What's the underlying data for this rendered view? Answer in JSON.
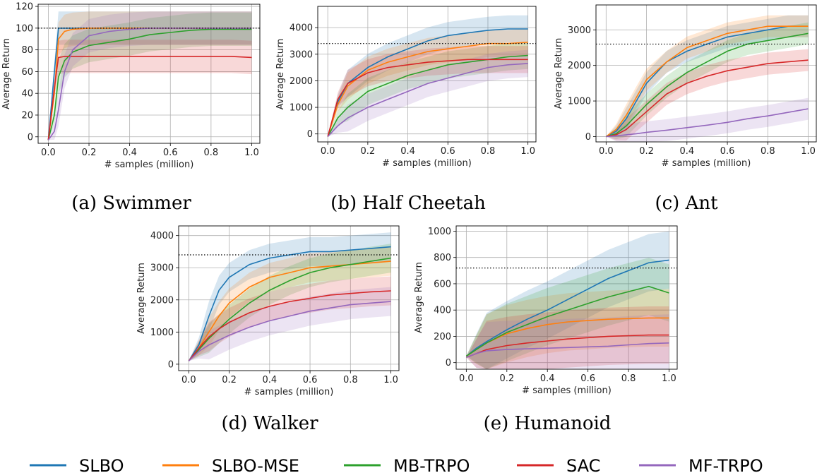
{
  "legend": [
    {
      "name": "SLBO",
      "color": "#1f77b4"
    },
    {
      "name": "SLBO-MSE",
      "color": "#ff7f0e"
    },
    {
      "name": "MB-TRPO",
      "color": "#2ca02c"
    },
    {
      "name": "SAC",
      "color": "#d62728"
    },
    {
      "name": "MF-TRPO",
      "color": "#9467bd"
    }
  ],
  "chart_data": [
    {
      "type": "line",
      "caption": "(a) Swimmer",
      "xlabel": "# samples (million)",
      "ylabel": "Average Return",
      "xlim": [
        -0.05,
        1.04
      ],
      "ylim": [
        -6,
        122
      ],
      "xticks": [
        "0.0",
        "0.2",
        "0.4",
        "0.6",
        "0.8",
        "1.0"
      ],
      "yticks": [
        "0",
        "20",
        "40",
        "60",
        "80",
        "100",
        "120"
      ],
      "reference_line": 100,
      "grid": true,
      "x": [
        0.0,
        0.03,
        0.05,
        0.08,
        0.12,
        0.2,
        0.3,
        0.4,
        0.5,
        0.6,
        0.7,
        0.8,
        0.9,
        1.0
      ],
      "series": [
        {
          "name": "SLBO",
          "values": [
            -3,
            60,
            100,
            100,
            100,
            100,
            100,
            100,
            100,
            100,
            100,
            100,
            100,
            100
          ]
        },
        {
          "name": "SLBO-MSE",
          "values": [
            -3,
            40,
            90,
            97,
            99,
            100,
            100,
            100,
            100,
            100,
            100,
            100,
            100,
            100
          ]
        },
        {
          "name": "MB-TRPO",
          "values": [
            -3,
            20,
            55,
            70,
            78,
            84,
            87,
            90,
            94,
            96,
            98,
            99,
            99,
            99
          ]
        },
        {
          "name": "SAC",
          "values": [
            -3,
            45,
            73,
            74,
            74,
            74,
            74,
            74,
            74,
            74,
            74,
            74,
            74,
            73
          ]
        },
        {
          "name": "MF-TRPO",
          "values": [
            -3,
            5,
            25,
            60,
            80,
            93,
            97,
            99,
            100,
            100,
            100,
            100,
            100,
            100
          ]
        }
      ]
    },
    {
      "type": "line",
      "caption": "(b) Half Cheetah",
      "xlabel": "# samples (million)",
      "ylabel": "Average Return",
      "xlim": [
        -0.05,
        1.04
      ],
      "ylim": [
        -300,
        4800
      ],
      "xticks": [
        "0.0",
        "0.2",
        "0.4",
        "0.6",
        "0.8",
        "1.0"
      ],
      "yticks": [
        "0",
        "1000",
        "2000",
        "3000",
        "4000"
      ],
      "reference_line": 3400,
      "grid": true,
      "x": [
        0.0,
        0.05,
        0.1,
        0.2,
        0.3,
        0.4,
        0.5,
        0.6,
        0.7,
        0.8,
        0.9,
        1.0
      ],
      "series": [
        {
          "name": "SLBO",
          "values": [
            -100,
            1200,
            1900,
            2500,
            2900,
            3200,
            3500,
            3700,
            3800,
            3900,
            3950,
            3950
          ]
        },
        {
          "name": "SLBO-MSE",
          "values": [
            -100,
            1100,
            1800,
            2400,
            2700,
            2900,
            3100,
            3200,
            3300,
            3400,
            3400,
            3450
          ]
        },
        {
          "name": "MB-TRPO",
          "values": [
            -100,
            600,
            1000,
            1600,
            1900,
            2200,
            2400,
            2600,
            2700,
            2800,
            2900,
            2950
          ]
        },
        {
          "name": "SAC",
          "values": [
            -100,
            1300,
            1900,
            2300,
            2500,
            2600,
            2700,
            2750,
            2800,
            2800,
            2800,
            2800
          ]
        },
        {
          "name": "MF-TRPO",
          "values": [
            -100,
            300,
            600,
            1000,
            1300,
            1600,
            1900,
            2100,
            2300,
            2500,
            2600,
            2650
          ]
        }
      ]
    },
    {
      "type": "line",
      "caption": "(c) Ant",
      "xlabel": "# samples (million)",
      "ylabel": "Average Return",
      "xlim": [
        -0.05,
        1.04
      ],
      "ylim": [
        -150,
        3700
      ],
      "xticks": [
        "0.0",
        "0.2",
        "0.4",
        "0.6",
        "0.8",
        "1.0"
      ],
      "yticks": [
        "0",
        "1000",
        "2000",
        "3000"
      ],
      "reference_line": 2600,
      "grid": true,
      "x": [
        0.0,
        0.05,
        0.1,
        0.15,
        0.2,
        0.3,
        0.4,
        0.5,
        0.6,
        0.7,
        0.8,
        0.9,
        1.0
      ],
      "series": [
        {
          "name": "SLBO",
          "values": [
            0,
            150,
            500,
            1000,
            1500,
            2100,
            2400,
            2600,
            2800,
            2900,
            3000,
            3100,
            3100
          ]
        },
        {
          "name": "SLBO-MSE",
          "values": [
            0,
            200,
            600,
            1100,
            1600,
            2100,
            2500,
            2700,
            2900,
            3000,
            3100,
            3100,
            3100
          ]
        },
        {
          "name": "MB-TRPO",
          "values": [
            0,
            80,
            300,
            600,
            900,
            1400,
            1800,
            2100,
            2400,
            2600,
            2700,
            2800,
            2900
          ]
        },
        {
          "name": "SAC",
          "values": [
            0,
            50,
            200,
            450,
            700,
            1200,
            1500,
            1700,
            1850,
            1950,
            2050,
            2100,
            2150
          ]
        },
        {
          "name": "MF-TRPO",
          "values": [
            0,
            20,
            50,
            80,
            120,
            180,
            250,
            320,
            400,
            500,
            580,
            680,
            780
          ]
        }
      ]
    },
    {
      "type": "line",
      "caption": "(d) Walker",
      "xlabel": "# samples (million)",
      "ylabel": "Average Return",
      "xlim": [
        -0.05,
        1.04
      ],
      "ylim": [
        -200,
        4300
      ],
      "xticks": [
        "0.0",
        "0.2",
        "0.4",
        "0.6",
        "0.8",
        "1.0"
      ],
      "yticks": [
        "0",
        "1000",
        "2000",
        "3000",
        "4000"
      ],
      "reference_line": 3400,
      "grid": true,
      "x": [
        0.0,
        0.05,
        0.1,
        0.15,
        0.2,
        0.3,
        0.4,
        0.5,
        0.6,
        0.7,
        0.8,
        0.9,
        1.0
      ],
      "series": [
        {
          "name": "SLBO",
          "values": [
            100,
            600,
            1500,
            2300,
            2700,
            3100,
            3300,
            3400,
            3500,
            3500,
            3550,
            3600,
            3650
          ]
        },
        {
          "name": "SLBO-MSE",
          "values": [
            100,
            500,
            1000,
            1500,
            1900,
            2400,
            2700,
            2850,
            3000,
            3050,
            3100,
            3150,
            3200
          ]
        },
        {
          "name": "MB-TRPO",
          "values": [
            100,
            450,
            800,
            1100,
            1400,
            1900,
            2300,
            2600,
            2850,
            3000,
            3100,
            3200,
            3300
          ]
        },
        {
          "name": "SAC",
          "values": [
            100,
            500,
            850,
            1100,
            1300,
            1600,
            1800,
            1950,
            2050,
            2150,
            2200,
            2250,
            2280
          ]
        },
        {
          "name": "MF-TRPO",
          "values": [
            100,
            400,
            600,
            750,
            900,
            1150,
            1350,
            1500,
            1650,
            1750,
            1850,
            1900,
            1950
          ]
        }
      ]
    },
    {
      "type": "line",
      "caption": "(e) Humanoid",
      "xlabel": "# samples (million)",
      "ylabel": "Average Return",
      "xlim": [
        -0.05,
        1.04
      ],
      "ylim": [
        -50,
        1040
      ],
      "xticks": [
        "0.0",
        "0.2",
        "0.4",
        "0.6",
        "0.8",
        "1.0"
      ],
      "yticks": [
        "0",
        "200",
        "400",
        "600",
        "800",
        "1000"
      ],
      "reference_line": 720,
      "grid": true,
      "x": [
        0.0,
        0.05,
        0.1,
        0.2,
        0.3,
        0.4,
        0.5,
        0.6,
        0.7,
        0.8,
        0.9,
        1.0
      ],
      "series": [
        {
          "name": "SLBO",
          "values": [
            50,
            110,
            160,
            250,
            330,
            400,
            480,
            560,
            640,
            700,
            760,
            780
          ]
        },
        {
          "name": "SLBO-MSE",
          "values": [
            50,
            100,
            150,
            220,
            260,
            290,
            310,
            320,
            330,
            335,
            340,
            340
          ]
        },
        {
          "name": "MB-TRPO",
          "values": [
            50,
            100,
            150,
            230,
            290,
            350,
            400,
            450,
            500,
            540,
            580,
            530
          ]
        },
        {
          "name": "SAC",
          "values": [
            40,
            70,
            100,
            130,
            150,
            165,
            180,
            190,
            200,
            205,
            210,
            210
          ]
        },
        {
          "name": "MF-TRPO",
          "values": [
            40,
            70,
            90,
            100,
            105,
            110,
            115,
            120,
            125,
            135,
            145,
            150
          ]
        }
      ]
    }
  ]
}
